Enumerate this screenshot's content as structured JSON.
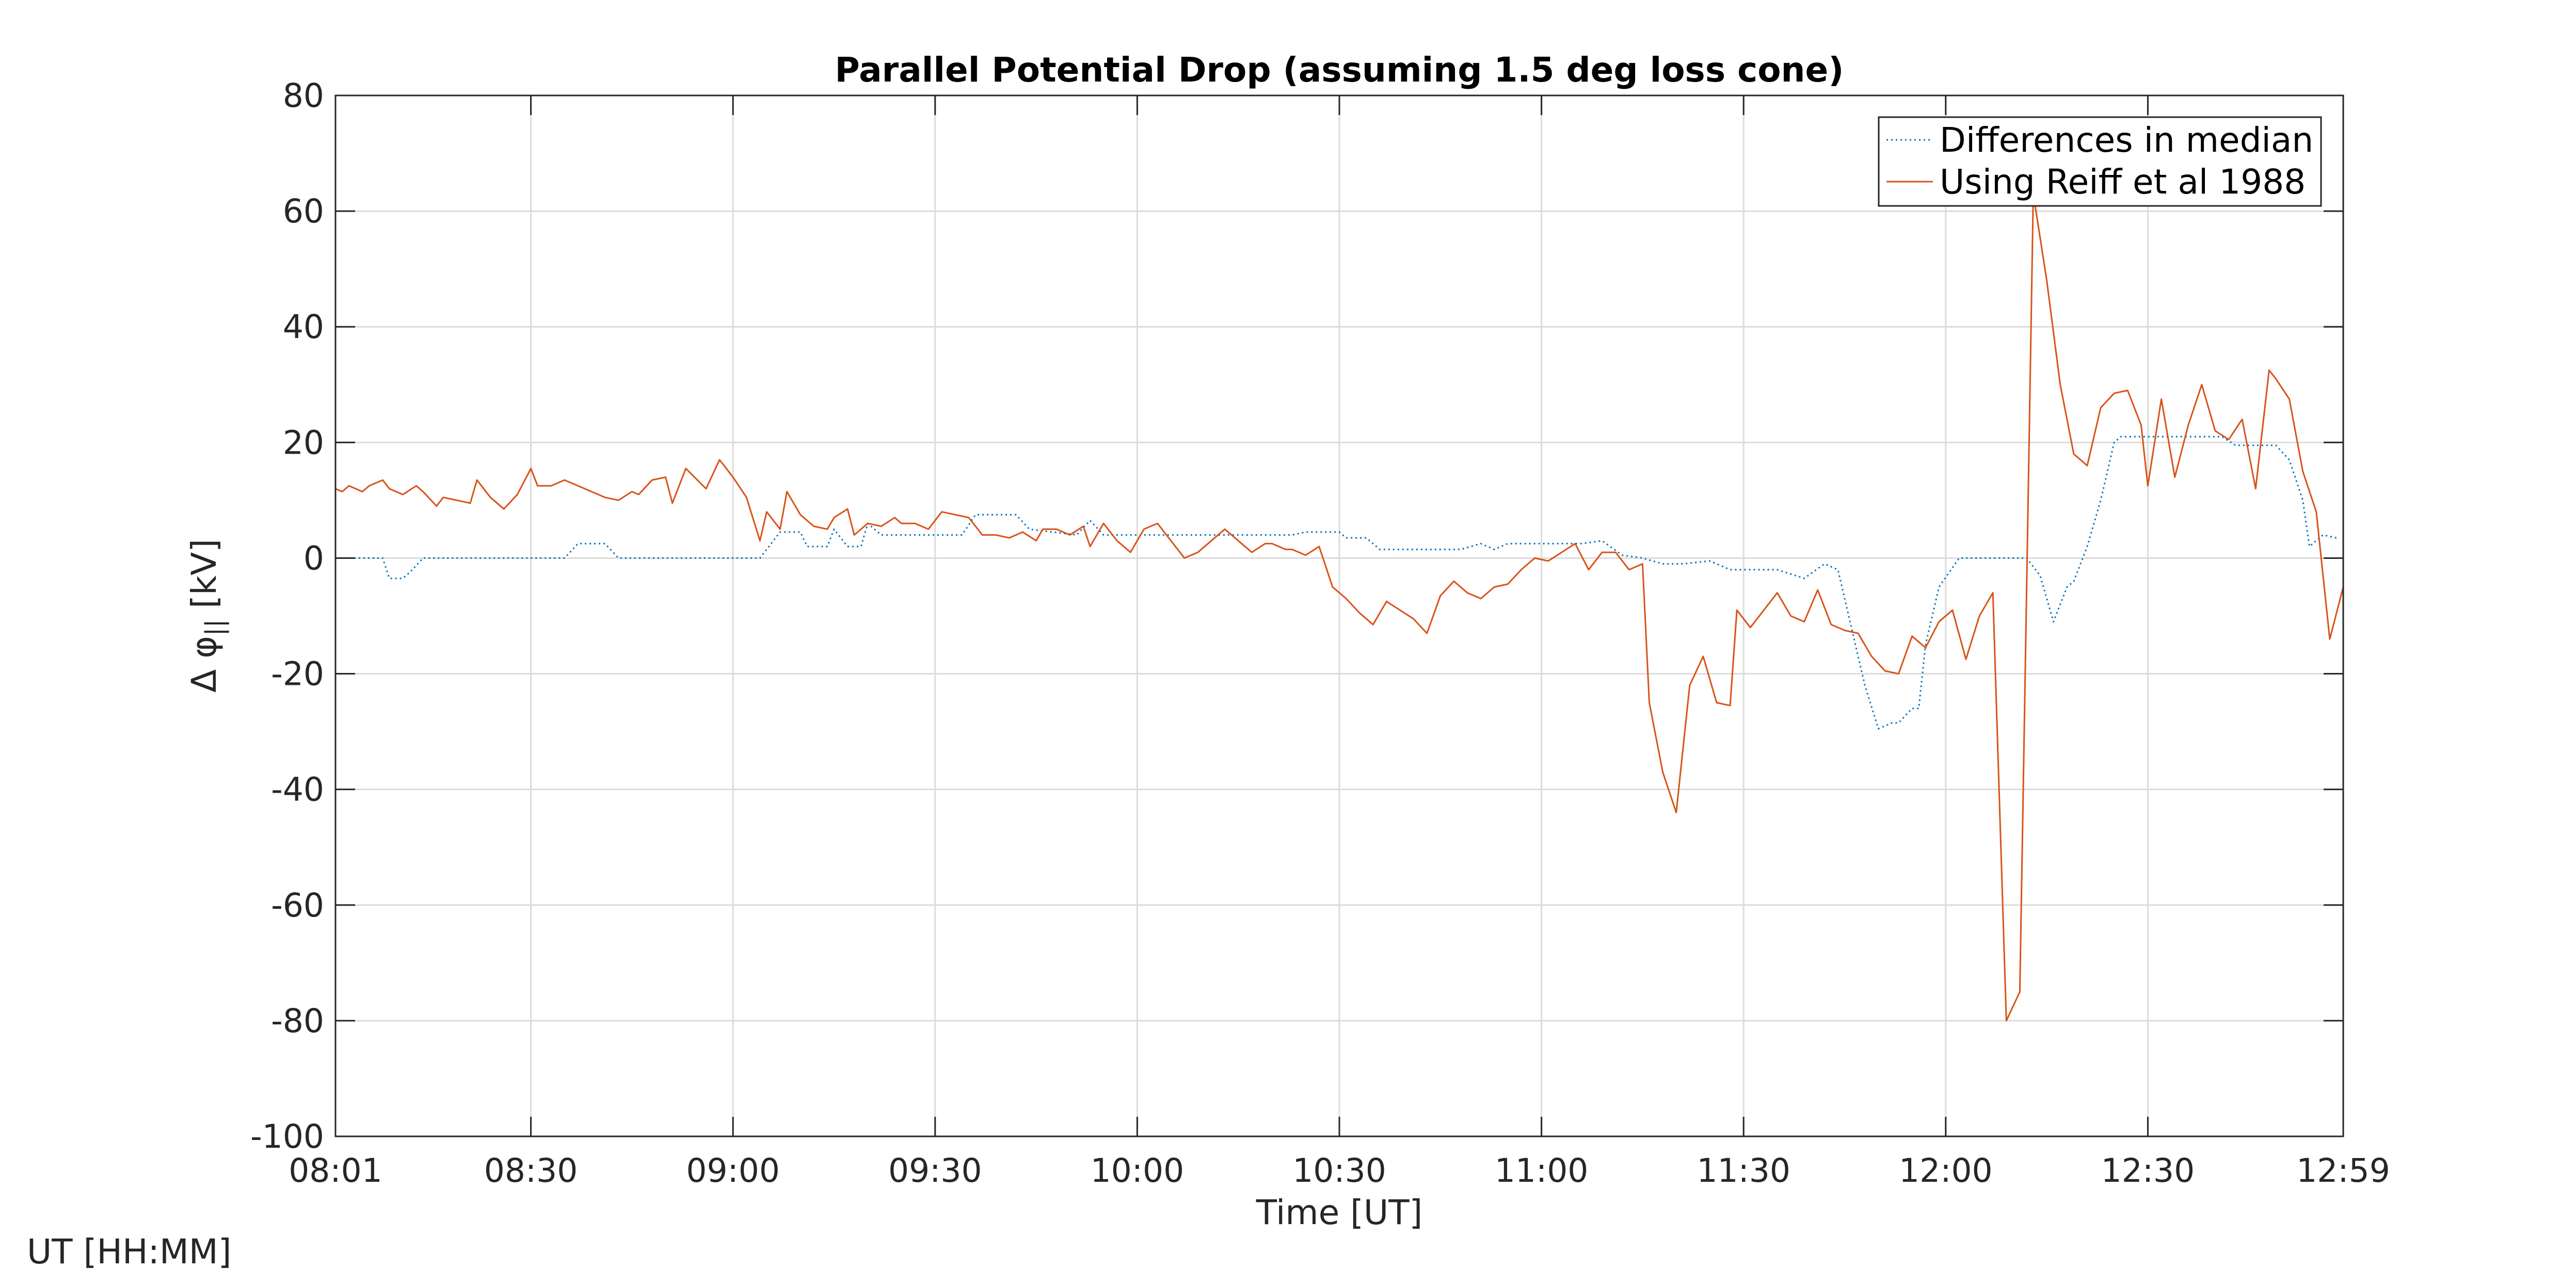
{
  "chart_data": {
    "type": "line",
    "title": "Parallel Potential Drop (assuming 1.5 deg loss cone)",
    "xlabel": "Time [UT]",
    "ylabel_prefix": "Δ φ",
    "ylabel_subscript": "||",
    "ylabel_suffix": " [kV]",
    "corner_label": "UT [HH:MM]",
    "xlim": [
      "08:01",
      "12:59"
    ],
    "ylim": [
      -100,
      80
    ],
    "grid": true,
    "legend_position": "top-right",
    "x_ticks": [
      "08:01",
      "08:30",
      "09:00",
      "09:30",
      "10:00",
      "10:30",
      "11:00",
      "11:30",
      "12:00",
      "12:30",
      "12:59"
    ],
    "y_ticks": [
      "80",
      "60",
      "40",
      "20",
      "0",
      "-20",
      "-40",
      "-60",
      "-80",
      "-100"
    ],
    "series": [
      {
        "name": "Differences in median",
        "color": "#0072BD",
        "style": "dotted",
        "points": [
          [
            "08:01",
            0
          ],
          [
            "08:08",
            0
          ],
          [
            "08:09",
            -3.5
          ],
          [
            "08:11",
            -3.5
          ],
          [
            "08:12",
            -2.5
          ],
          [
            "08:14",
            0
          ],
          [
            "08:35",
            0
          ],
          [
            "08:37",
            2.5
          ],
          [
            "08:41",
            2.5
          ],
          [
            "08:43",
            0
          ],
          [
            "09:04",
            0
          ],
          [
            "09:07",
            4.5
          ],
          [
            "09:10",
            4.5
          ],
          [
            "09:11",
            2
          ],
          [
            "09:14",
            2
          ],
          [
            "09:15",
            5
          ],
          [
            "09:17",
            2
          ],
          [
            "09:19",
            2
          ],
          [
            "09:20",
            6
          ],
          [
            "09:22",
            4
          ],
          [
            "09:34",
            4
          ],
          [
            "09:36",
            7.5
          ],
          [
            "09:42",
            7.5
          ],
          [
            "09:44",
            5
          ],
          [
            "09:51",
            4
          ],
          [
            "09:53",
            6.5
          ],
          [
            "09:55",
            4
          ],
          [
            "10:23",
            4
          ],
          [
            "10:25",
            4.5
          ],
          [
            "10:30",
            4.5
          ],
          [
            "10:31",
            3.5
          ],
          [
            "10:34",
            3.5
          ],
          [
            "10:36",
            1.5
          ],
          [
            "10:48",
            1.5
          ],
          [
            "10:51",
            2.5
          ],
          [
            "10:53",
            1.5
          ],
          [
            "10:55",
            2.5
          ],
          [
            "11:06",
            2.5
          ],
          [
            "11:09",
            3
          ],
          [
            "11:12",
            0.5
          ],
          [
            "11:15",
            0
          ],
          [
            "11:18",
            -1
          ],
          [
            "11:21",
            -1
          ],
          [
            "11:25",
            -0.5
          ],
          [
            "11:28",
            -2
          ],
          [
            "11:35",
            -2
          ],
          [
            "11:39",
            -3.5
          ],
          [
            "11:42",
            -1
          ],
          [
            "11:44",
            -2
          ],
          [
            "11:46",
            -12
          ],
          [
            "11:48",
            -22
          ],
          [
            "11:50",
            -29.5
          ],
          [
            "11:52",
            -28.5
          ],
          [
            "11:53",
            -28.5
          ],
          [
            "11:55",
            -26
          ],
          [
            "11:56",
            -26
          ],
          [
            "11:57",
            -15
          ],
          [
            "11:59",
            -5
          ],
          [
            "12:02",
            0
          ],
          [
            "12:12",
            0
          ],
          [
            "12:14",
            -3
          ],
          [
            "12:16",
            -11
          ],
          [
            "12:18",
            -5
          ],
          [
            "12:19",
            -4
          ],
          [
            "12:21",
            2
          ],
          [
            "12:23",
            10
          ],
          [
            "12:25",
            20
          ],
          [
            "12:26",
            21
          ],
          [
            "12:41",
            21
          ],
          [
            "12:43",
            19.5
          ],
          [
            "12:49",
            19.5
          ],
          [
            "12:51",
            17
          ],
          [
            "12:53",
            10
          ],
          [
            "12:54",
            2
          ],
          [
            "12:56",
            4
          ],
          [
            "12:58",
            3.5
          ]
        ]
      },
      {
        "name": "Using Reiff et al 1988",
        "color": "#D95319",
        "style": "solid",
        "points": [
          [
            "08:01",
            12
          ],
          [
            "08:02",
            11.5
          ],
          [
            "08:03",
            12.5
          ],
          [
            "08:04",
            12
          ],
          [
            "08:05",
            11.5
          ],
          [
            "08:06",
            12.5
          ],
          [
            "08:08",
            13.5
          ],
          [
            "08:09",
            12
          ],
          [
            "08:11",
            11
          ],
          [
            "08:13",
            12.5
          ],
          [
            "08:14",
            11.5
          ],
          [
            "08:16",
            9
          ],
          [
            "08:17",
            10.5
          ],
          [
            "08:19",
            10
          ],
          [
            "08:21",
            9.5
          ],
          [
            "08:22",
            13.5
          ],
          [
            "08:24",
            10.5
          ],
          [
            "08:26",
            8.5
          ],
          [
            "08:28",
            11
          ],
          [
            "08:30",
            15.5
          ],
          [
            "08:31",
            12.5
          ],
          [
            "08:33",
            12.5
          ],
          [
            "08:35",
            13.5
          ],
          [
            "08:37",
            12.5
          ],
          [
            "08:39",
            11.5
          ],
          [
            "08:41",
            10.5
          ],
          [
            "08:43",
            10
          ],
          [
            "08:45",
            11.5
          ],
          [
            "08:46",
            11
          ],
          [
            "08:48",
            13.5
          ],
          [
            "08:50",
            14
          ],
          [
            "08:51",
            9.5
          ],
          [
            "08:53",
            15.5
          ],
          [
            "08:56",
            12
          ],
          [
            "08:58",
            17
          ],
          [
            "09:00",
            14
          ],
          [
            "09:02",
            10.5
          ],
          [
            "09:04",
            3
          ],
          [
            "09:05",
            8
          ],
          [
            "09:07",
            5
          ],
          [
            "09:08",
            11.5
          ],
          [
            "09:10",
            7.5
          ],
          [
            "09:12",
            5.5
          ],
          [
            "09:14",
            5
          ],
          [
            "09:15",
            7
          ],
          [
            "09:17",
            8.5
          ],
          [
            "09:18",
            4
          ],
          [
            "09:20",
            6
          ],
          [
            "09:22",
            5.5
          ],
          [
            "09:24",
            7
          ],
          [
            "09:25",
            6
          ],
          [
            "09:27",
            6
          ],
          [
            "09:29",
            5
          ],
          [
            "09:31",
            8
          ],
          [
            "09:33",
            7.5
          ],
          [
            "09:35",
            7
          ],
          [
            "09:37",
            4
          ],
          [
            "09:39",
            4
          ],
          [
            "09:41",
            3.5
          ],
          [
            "09:43",
            4.5
          ],
          [
            "09:45",
            3
          ],
          [
            "09:46",
            5
          ],
          [
            "09:48",
            5
          ],
          [
            "09:50",
            4
          ],
          [
            "09:52",
            5.5
          ],
          [
            "09:53",
            2
          ],
          [
            "09:55",
            6
          ],
          [
            "09:57",
            3
          ],
          [
            "09:59",
            1
          ],
          [
            "10:01",
            5
          ],
          [
            "10:03",
            6
          ],
          [
            "10:05",
            3
          ],
          [
            "10:07",
            0
          ],
          [
            "10:09",
            1
          ],
          [
            "10:11",
            3
          ],
          [
            "10:13",
            5
          ],
          [
            "10:15",
            3
          ],
          [
            "10:17",
            1
          ],
          [
            "10:19",
            2.5
          ],
          [
            "10:20",
            2.5
          ],
          [
            "10:22",
            1.5
          ],
          [
            "10:23",
            1.5
          ],
          [
            "10:25",
            0.5
          ],
          [
            "10:27",
            2
          ],
          [
            "10:29",
            -5
          ],
          [
            "10:31",
            -7
          ],
          [
            "10:33",
            -9.5
          ],
          [
            "10:35",
            -11.5
          ],
          [
            "10:37",
            -7.5
          ],
          [
            "10:39",
            -9
          ],
          [
            "10:41",
            -10.5
          ],
          [
            "10:43",
            -13
          ],
          [
            "10:45",
            -6.5
          ],
          [
            "10:47",
            -4
          ],
          [
            "10:49",
            -6
          ],
          [
            "10:51",
            -7
          ],
          [
            "10:53",
            -5
          ],
          [
            "10:55",
            -4.5
          ],
          [
            "10:57",
            -2
          ],
          [
            "10:59",
            0
          ],
          [
            "11:01",
            -0.5
          ],
          [
            "11:03",
            1
          ],
          [
            "11:05",
            2.5
          ],
          [
            "11:07",
            -2
          ],
          [
            "11:09",
            1
          ],
          [
            "11:11",
            1
          ],
          [
            "11:13",
            -2
          ],
          [
            "11:15",
            -1
          ],
          [
            "11:16",
            -25
          ],
          [
            "11:18",
            -37
          ],
          [
            "11:20",
            -44
          ],
          [
            "11:22",
            -22
          ],
          [
            "11:24",
            -17
          ],
          [
            "11:26",
            -25
          ],
          [
            "11:28",
            -25.5
          ],
          [
            "11:29",
            -9
          ],
          [
            "11:31",
            -12
          ],
          [
            "11:33",
            -9
          ],
          [
            "11:35",
            -6
          ],
          [
            "11:37",
            -10
          ],
          [
            "11:39",
            -11
          ],
          [
            "11:41",
            -5.5
          ],
          [
            "11:43",
            -11.5
          ],
          [
            "11:45",
            -12.5
          ],
          [
            "11:47",
            -13
          ],
          [
            "11:49",
            -17
          ],
          [
            "11:51",
            -19.5
          ],
          [
            "11:53",
            -20
          ],
          [
            "11:55",
            -13.5
          ],
          [
            "11:57",
            -15.5
          ],
          [
            "11:59",
            -11
          ],
          [
            "12:01",
            -9
          ],
          [
            "12:03",
            -17.5
          ],
          [
            "12:05",
            -10
          ],
          [
            "12:07",
            -6
          ],
          [
            "12:09",
            -80
          ],
          [
            "12:11",
            -75
          ],
          [
            "12:13",
            63
          ],
          [
            "12:15",
            48
          ],
          [
            "12:17",
            30
          ],
          [
            "12:19",
            18
          ],
          [
            "12:21",
            16
          ],
          [
            "12:23",
            26
          ],
          [
            "12:25",
            28.5
          ],
          [
            "12:27",
            29
          ],
          [
            "12:29",
            23
          ],
          [
            "12:30",
            12.5
          ],
          [
            "12:32",
            27.5
          ],
          [
            "12:34",
            14
          ],
          [
            "12:36",
            23
          ],
          [
            "12:38",
            30
          ],
          [
            "12:40",
            22
          ],
          [
            "12:42",
            20.5
          ],
          [
            "12:44",
            24
          ],
          [
            "12:46",
            12
          ],
          [
            "12:48",
            32.5
          ],
          [
            "12:49",
            31
          ],
          [
            "12:51",
            27.5
          ],
          [
            "12:53",
            15
          ],
          [
            "12:55",
            8
          ],
          [
            "12:57",
            -14
          ],
          [
            "12:59",
            -5
          ]
        ]
      }
    ]
  }
}
